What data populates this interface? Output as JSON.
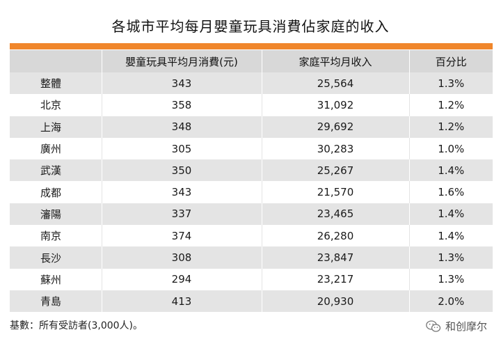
{
  "title": "各城市平均每月嬰童玩具消費佔家庭的收入",
  "colors": {
    "accent": "#f0862b",
    "header_bg": "#d8d8d8",
    "stripe_bg": "#e4e4e4"
  },
  "table": {
    "headers": [
      "",
      "嬰童玩具平均月消費(元)",
      "家庭平均月收入",
      "百分比"
    ],
    "rows": [
      [
        "整體",
        "343",
        "25,564",
        "1.3%"
      ],
      [
        "北京",
        "358",
        "31,092",
        "1.2%"
      ],
      [
        "上海",
        "348",
        "29,692",
        "1.2%"
      ],
      [
        "廣州",
        "305",
        "30,283",
        "1.0%"
      ],
      [
        "武漢",
        "350",
        "25,267",
        "1.4%"
      ],
      [
        "成都",
        "343",
        "21,570",
        "1.6%"
      ],
      [
        "瀋陽",
        "337",
        "23,465",
        "1.4%"
      ],
      [
        "南京",
        "374",
        "26,280",
        "1.4%"
      ],
      [
        "長沙",
        "308",
        "23,847",
        "1.3%"
      ],
      [
        "蘇州",
        "294",
        "23,217",
        "1.3%"
      ],
      [
        "青島",
        "413",
        "20,930",
        "2.0%"
      ]
    ]
  },
  "footnote": "基數：所有受訪者(3,000人)。",
  "watermark": {
    "icon": "wechat-icon",
    "text": "和创摩尔"
  }
}
